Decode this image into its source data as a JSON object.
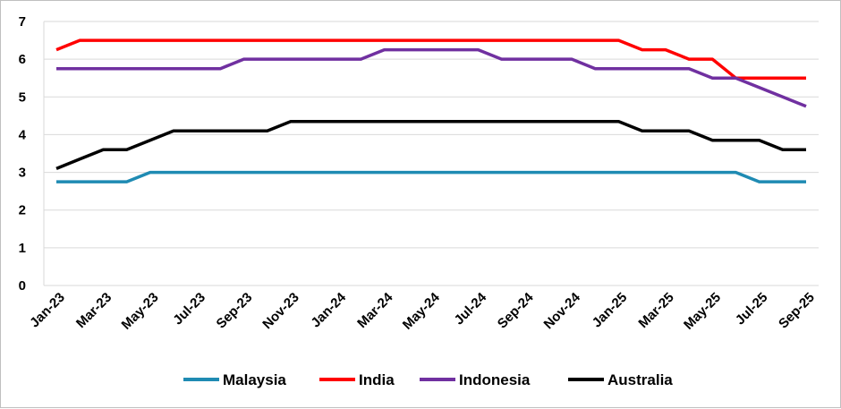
{
  "chart_data": {
    "type": "line",
    "title": "",
    "xlabel": "",
    "ylabel": "",
    "ylim": [
      0,
      7
    ],
    "yticks": [
      0,
      1,
      2,
      3,
      4,
      5,
      6,
      7
    ],
    "grid": "horizontal",
    "legend_position": "bottom",
    "x": [
      "Jan-23",
      "Feb-23",
      "Mar-23",
      "Apr-23",
      "May-23",
      "Jun-23",
      "Jul-23",
      "Aug-23",
      "Sep-23",
      "Oct-23",
      "Nov-23",
      "Dec-23",
      "Jan-24",
      "Feb-24",
      "Mar-24",
      "Apr-24",
      "May-24",
      "Jun-24",
      "Jul-24",
      "Aug-24",
      "Sep-24",
      "Oct-24",
      "Nov-24",
      "Dec-24",
      "Jan-25",
      "Feb-25",
      "Mar-25",
      "Apr-25",
      "May-25",
      "Jun-25",
      "Jul-25",
      "Aug-25",
      "Sep-25"
    ],
    "x_tick_labels": [
      "Jan-23",
      "Mar-23",
      "May-23",
      "Jul-23",
      "Sep-23",
      "Nov-23",
      "Jan-24",
      "Mar-24",
      "May-24",
      "Jul-24",
      "Sep-24",
      "Nov-24",
      "Jan-25",
      "Mar-25",
      "May-25",
      "Jul-25",
      "Sep-25"
    ],
    "series": [
      {
        "name": "Malaysia",
        "color": "#1f8bb3",
        "values": [
          2.75,
          2.75,
          2.75,
          2.75,
          3,
          3,
          3,
          3,
          3,
          3,
          3,
          3,
          3,
          3,
          3,
          3,
          3,
          3,
          3,
          3,
          3,
          3,
          3,
          3,
          3,
          3,
          3,
          3,
          3,
          3,
          2.75,
          2.75,
          2.75
        ]
      },
      {
        "name": "India",
        "color": "#ff0000",
        "values": [
          6.25,
          6.5,
          6.5,
          6.5,
          6.5,
          6.5,
          6.5,
          6.5,
          6.5,
          6.5,
          6.5,
          6.5,
          6.5,
          6.5,
          6.5,
          6.5,
          6.5,
          6.5,
          6.5,
          6.5,
          6.5,
          6.5,
          6.5,
          6.5,
          6.5,
          6.25,
          6.25,
          6,
          6,
          5.5,
          5.5,
          5.5,
          5.5
        ]
      },
      {
        "name": "Indonesia",
        "color": "#7030a0",
        "values": [
          5.75,
          5.75,
          5.75,
          5.75,
          5.75,
          5.75,
          5.75,
          5.75,
          6,
          6,
          6,
          6,
          6,
          6,
          6.25,
          6.25,
          6.25,
          6.25,
          6.25,
          6,
          6,
          6,
          6,
          5.75,
          5.75,
          5.75,
          5.75,
          5.75,
          5.5,
          5.5,
          5.25,
          5,
          4.75
        ]
      },
      {
        "name": "Australia",
        "color": "#000000",
        "values": [
          3.1,
          3.35,
          3.6,
          3.6,
          3.85,
          4.1,
          4.1,
          4.1,
          4.1,
          4.1,
          4.35,
          4.35,
          4.35,
          4.35,
          4.35,
          4.35,
          4.35,
          4.35,
          4.35,
          4.35,
          4.35,
          4.35,
          4.35,
          4.35,
          4.35,
          4.1,
          4.1,
          4.1,
          3.85,
          3.85,
          3.85,
          3.6,
          3.6
        ]
      }
    ]
  }
}
